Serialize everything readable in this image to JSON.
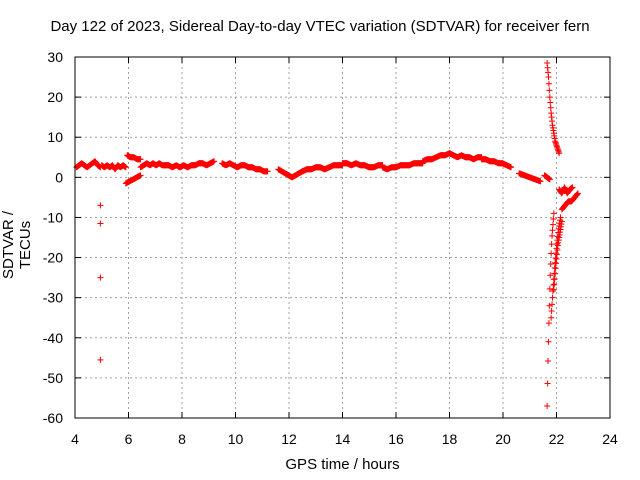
{
  "chart_data": {
    "type": "scatter",
    "title": "Day 122 of 2023, Sidereal Day-to-day VTEC variation (SDTVAR) for receiver fern",
    "xlabel": "GPS time / hours",
    "ylabel": "SDTVAR / TECUs",
    "xlim": [
      4,
      24
    ],
    "ylim": [
      -60,
      30
    ],
    "xticks": [
      4,
      6,
      8,
      10,
      12,
      14,
      16,
      18,
      20,
      22,
      24
    ],
    "yticks": [
      30,
      20,
      10,
      0,
      -10,
      -20,
      -30,
      -40,
      -50,
      -60
    ],
    "grid": true,
    "marker": "+",
    "color": "#ff0000",
    "segments": [
      {
        "x0": 4.05,
        "x1": 4.95,
        "y": [
          2.5,
          3.0,
          3.5,
          3.0,
          2.5,
          3.0,
          3.5,
          4.0,
          3.0,
          2.5
        ]
      },
      {
        "x0": 5.0,
        "x1": 5.9,
        "y": [
          3.0,
          2.5,
          3.0,
          2.5,
          3.0,
          2.0,
          3.0,
          2.5,
          3.0,
          2.5
        ]
      },
      {
        "x0": 5.9,
        "x1": 6.45,
        "y": [
          -1.5,
          -1.0,
          -0.5,
          0.0,
          0.5
        ]
      },
      {
        "x0": 5.95,
        "x1": 6.45,
        "y": [
          5.5,
          5.0,
          5.0,
          4.5,
          4.5
        ]
      },
      {
        "x0": 6.45,
        "x1": 7.5,
        "y": [
          2.5,
          3.0,
          3.5,
          3.0,
          3.5,
          3.0,
          3.5,
          3.0,
          3.0,
          3.0
        ]
      },
      {
        "x0": 7.5,
        "x1": 9.2,
        "y": [
          3.0,
          2.5,
          3.0,
          2.5,
          3.0,
          2.5,
          3.0,
          3.0,
          3.5,
          3.5,
          3.0,
          3.5,
          4.0
        ]
      },
      {
        "x0": 9.5,
        "x1": 11.2,
        "y": [
          3.5,
          3.0,
          3.5,
          3.0,
          2.5,
          3.0,
          3.0,
          2.5,
          2.5,
          2.0,
          2.0,
          1.5,
          1.5
        ]
      },
      {
        "x0": 11.6,
        "x1": 12.5,
        "y": [
          2.0,
          1.5,
          1.0,
          0.5,
          0.0,
          0.5,
          1.0,
          1.5
        ]
      },
      {
        "x0": 12.5,
        "x1": 14.0,
        "y": [
          1.5,
          2.0,
          2.0,
          2.5,
          2.5,
          2.0,
          2.5,
          3.0,
          3.0,
          3.0
        ]
      },
      {
        "x0": 14.0,
        "x1": 15.5,
        "y": [
          3.5,
          3.5,
          3.0,
          3.5,
          3.0,
          3.0,
          2.5,
          2.5,
          3.0,
          3.0
        ]
      },
      {
        "x0": 15.5,
        "x1": 17.0,
        "y": [
          2.5,
          2.0,
          2.5,
          2.5,
          3.0,
          3.0,
          3.0,
          3.5,
          3.5,
          3.5
        ]
      },
      {
        "x0": 17.0,
        "x1": 18.0,
        "y": [
          4.0,
          4.5,
          4.5,
          5.0,
          5.5,
          5.5,
          6.0
        ]
      },
      {
        "x0": 18.0,
        "x1": 19.2,
        "y": [
          6.0,
          5.5,
          5.0,
          5.5,
          5.0,
          5.0,
          4.5,
          5.0,
          5.0
        ]
      },
      {
        "x0": 19.2,
        "x1": 20.3,
        "y": [
          4.5,
          4.5,
          4.0,
          4.0,
          3.5,
          3.5,
          3.0,
          2.5
        ]
      },
      {
        "x0": 20.6,
        "x1": 21.4,
        "y": [
          1.0,
          0.5,
          0.0,
          -0.5,
          -1.0
        ]
      },
      {
        "x0": 21.55,
        "x1": 21.75,
        "y": [
          0.5,
          0.0,
          -0.5
        ]
      },
      {
        "x0": 21.65,
        "x1": 22.1,
        "y": [
          28.5,
          25.0,
          20.0,
          16.0,
          13.0,
          11.0,
          9.0,
          8.0,
          7.0,
          6.0
        ]
      },
      {
        "x0": 21.65,
        "x1": 21.9,
        "y": [
          -57.0,
          -45.0,
          -35.0,
          -26.0,
          -20.0,
          -15.0,
          -12.0,
          -9.0
        ]
      },
      {
        "x0": 21.8,
        "x1": 22.15,
        "y": [
          -35.0,
          -28.0,
          -22.0,
          -17.0,
          -13.0,
          -10.0
        ]
      },
      {
        "x0": 21.9,
        "x1": 22.2,
        "y": [
          -28.0,
          -22.0,
          -17.0,
          -14.0,
          -11.0
        ]
      },
      {
        "x0": 22.1,
        "x1": 22.6,
        "y": [
          -3.0,
          -4.0,
          -2.5,
          -4.0,
          -3.0,
          -2.5
        ]
      },
      {
        "x0": 22.2,
        "x1": 22.8,
        "y": [
          -8.0,
          -7.0,
          -6.0,
          -6.0,
          -5.0,
          -4.0
        ]
      }
    ],
    "outliers": [
      {
        "x": 4.95,
        "y": -7.0
      },
      {
        "x": 4.95,
        "y": -11.5
      },
      {
        "x": 4.95,
        "y": -25.0
      },
      {
        "x": 4.95,
        "y": -45.5
      }
    ]
  }
}
